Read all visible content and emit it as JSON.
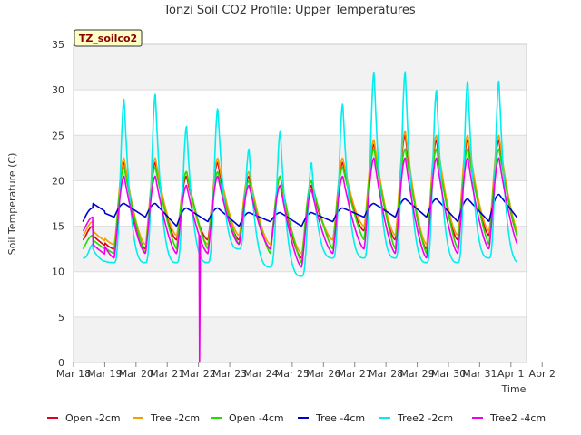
{
  "chart_data": {
    "type": "line",
    "title": "Tonzi Soil CO2 Profile: Upper Temperatures",
    "xlabel": "Time",
    "ylabel": "Soil Temperature (C)",
    "tag": "TZ_soilco2",
    "ylim": [
      0,
      35
    ],
    "yticks": [
      0,
      5,
      10,
      15,
      20,
      25,
      30,
      35
    ],
    "xticks": [
      "Mar 18",
      "Mar 19",
      "Mar 20",
      "Mar 21",
      "Mar 22",
      "Mar 23",
      "Mar 24",
      "Mar 25",
      "Mar 26",
      "Mar 27",
      "Mar 28",
      "Mar 29",
      "Mar 30",
      "Mar 31",
      "Apr 1",
      "Apr 2"
    ],
    "days_start": [
      "Mar 18"
    ],
    "daily_stats": {
      "days": [
        "Mar 18",
        "Mar 19",
        "Mar 20",
        "Mar 21",
        "Mar 22",
        "Mar 23",
        "Mar 24",
        "Mar 25",
        "Mar 26",
        "Mar 27",
        "Mar 28",
        "Mar 29",
        "Mar 30",
        "Mar 31",
        "Apr 1"
      ]
    },
    "grid": true,
    "legend_position": "bottom",
    "series": [
      {
        "name": "Open -2cm",
        "color": "#e0001a",
        "min": [
          13.5,
          12.5,
          12.5,
          13.5,
          13.5,
          13.5,
          12.5,
          11.5,
          13.5,
          14.5,
          13.5,
          12.5,
          13.5,
          14,
          13.5
        ],
        "max": [
          null,
          22,
          22,
          20.5,
          22,
          20.5,
          20.5,
          19.5,
          22,
          24,
          25,
          24.5,
          24.5,
          24.5,
          23.5
        ]
      },
      {
        "name": "Tree -2cm",
        "color": "#f0a000",
        "min": [
          14,
          13,
          13,
          14,
          13,
          14,
          13,
          12,
          13.5,
          15,
          14,
          13,
          14,
          14.5,
          14
        ],
        "max": [
          null,
          22.5,
          22.5,
          21,
          22.5,
          21,
          20.5,
          20,
          22.5,
          24.5,
          25.5,
          25,
          25,
          25,
          24
        ]
      },
      {
        "name": "Open -4cm",
        "color": "#22dd00",
        "min": [
          12.5,
          12,
          12,
          12.5,
          12.5,
          13,
          12,
          11,
          12.5,
          13.5,
          12.5,
          12,
          12.5,
          13,
          13
        ],
        "max": [
          null,
          21.5,
          21.5,
          21,
          21,
          20,
          20.5,
          20,
          21.5,
          23.5,
          23.5,
          23.5,
          23.5,
          23.5,
          22.5
        ]
      },
      {
        "name": "Tree -4cm",
        "color": "#0000cc",
        "min": [
          15.5,
          16,
          16,
          15,
          15.5,
          15,
          15.5,
          15,
          15.5,
          16,
          16,
          16,
          15.5,
          15.5,
          15.5
        ],
        "max": [
          null,
          17.5,
          17.5,
          17,
          17,
          16.5,
          16.5,
          16.5,
          17,
          17.5,
          18,
          18,
          18,
          18.5,
          18
        ]
      },
      {
        "name": "Tree2 -2cm",
        "color": "#00eeee",
        "min": [
          11.5,
          11,
          11,
          11,
          11,
          12.5,
          10.5,
          9.5,
          11.5,
          11.5,
          11.5,
          11,
          11,
          11.5,
          11
        ],
        "max": [
          null,
          29,
          29.5,
          26,
          28,
          23.5,
          25.5,
          22,
          28.5,
          32,
          32,
          30,
          31,
          31,
          30
        ]
      },
      {
        "name": "Tree2 -4cm",
        "color": "#ee00ee",
        "min": [
          14.5,
          11.5,
          12,
          12,
          12,
          13,
          12.5,
          10.5,
          12,
          12.5,
          12,
          11.5,
          12,
          12.5,
          12.5
        ],
        "max": [
          null,
          20.5,
          20.5,
          19.5,
          20.5,
          19.5,
          19.5,
          19,
          20.5,
          22.5,
          22.5,
          22.5,
          22.5,
          22.5,
          22.5
        ]
      }
    ],
    "annotations": [
      {
        "series": "Tree2 -4cm",
        "day": "Mar 22",
        "value": 0,
        "note": "spike"
      }
    ]
  }
}
